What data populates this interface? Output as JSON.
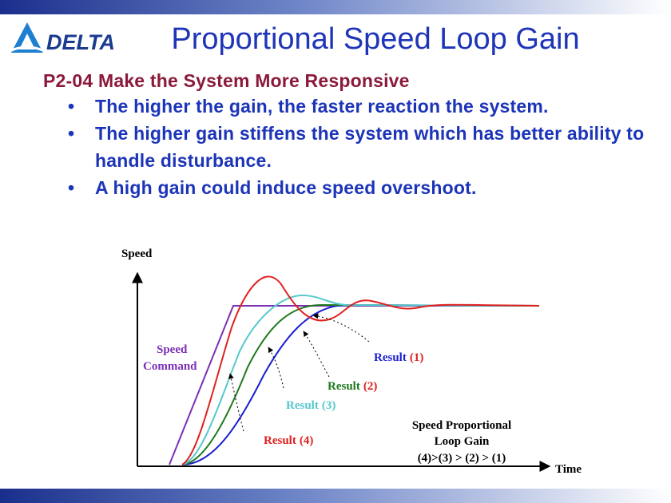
{
  "brand": {
    "name": "DELTA",
    "logo_icon": "delta-triangle-logo"
  },
  "slide": {
    "title": "Proportional Speed Loop Gain",
    "heading": "P2-04 Make the System More Responsive",
    "bullets": [
      "The higher the gain, the faster reaction the system.",
      "The higher gain stiffens the system which has better ability to handle disturbance.",
      "A high gain could induce speed overshoot."
    ]
  },
  "colors": {
    "title": "#1f35b8",
    "heading": "#8b1a3a",
    "bullet": "#1c34b8",
    "band": "#1a2f8c",
    "command": "#7b2fb5",
    "result1": "#1a1fd0",
    "result2": "#1e7a1e",
    "result3": "#55c8cc",
    "result4": "#e02020"
  },
  "figure": {
    "ylabel": "Speed",
    "xlabel": "Time",
    "command_label": [
      "Speed",
      "Command"
    ],
    "results": [
      {
        "label": "Result",
        "num": "(1)"
      },
      {
        "label": "Result",
        "num": "(2)"
      },
      {
        "label": "Result",
        "num": "(3)"
      },
      {
        "label": "Result",
        "num": "(4)"
      }
    ],
    "gain_legend": [
      "Speed Proportional",
      "Loop Gain",
      "(4)>(3) > (2) > (1)"
    ]
  }
}
